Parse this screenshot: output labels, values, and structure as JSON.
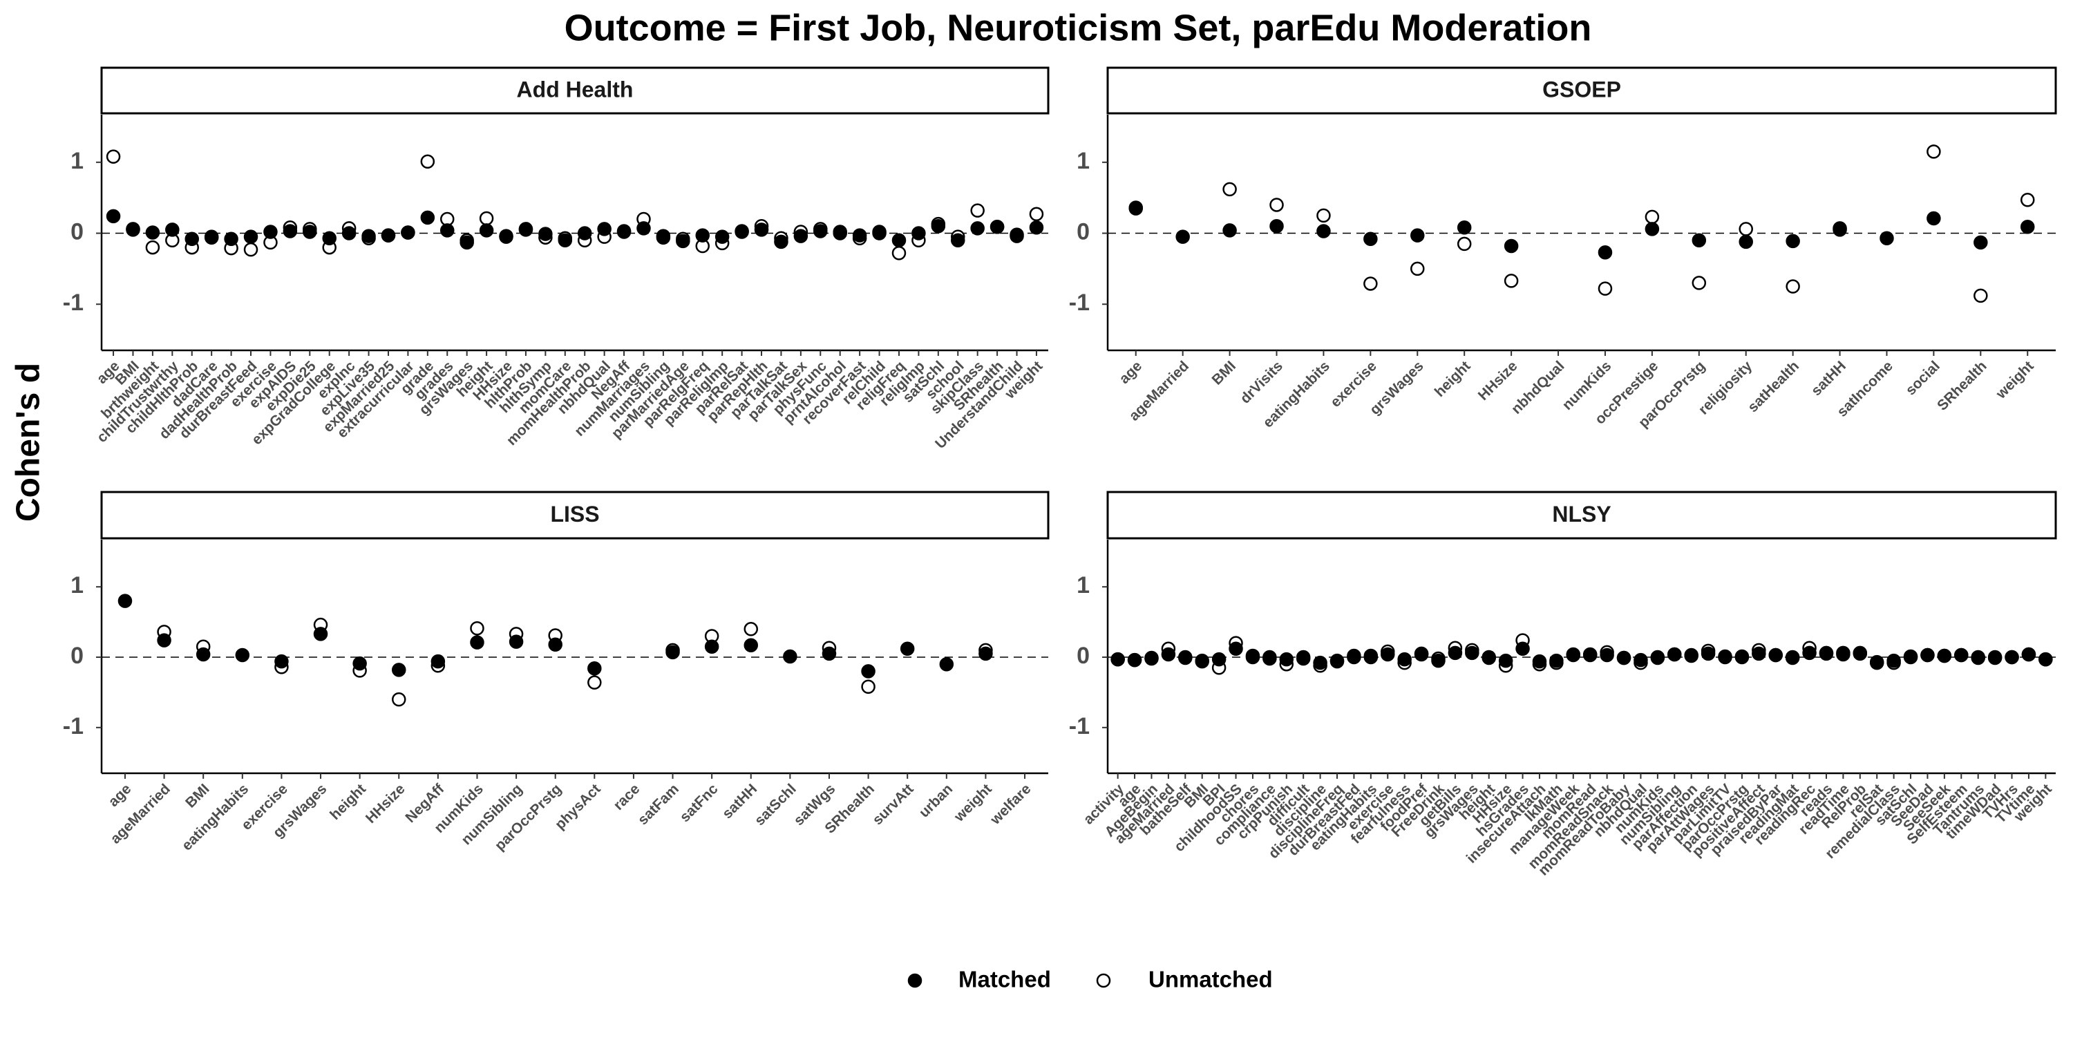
{
  "title": "Outcome = First Job, Neuroticism Set, parEdu Moderation",
  "ylabel": "Cohen's d",
  "legend": "bottom",
  "chart_data": [
    {
      "type": "dot",
      "title": "Add Health",
      "ylim": [
        -1.65,
        1.67
      ],
      "yticks": [
        -1,
        0,
        1
      ],
      "hline": 0,
      "categories": [
        "age",
        "BMI",
        "brthweight",
        "childTrustwrthy",
        "childHlthProb",
        "dadCare",
        "dadHealthProb",
        "durBreastFeed",
        "exercise",
        "expAIDS",
        "expDie25",
        "expGradCollege",
        "expInc",
        "expLive35",
        "expMarried25",
        "extracurricular",
        "grade",
        "grades",
        "grsWages",
        "height",
        "HHsize",
        "hlthProb",
        "hlthSymp",
        "momCare",
        "momHealthProb",
        "nbhdQual",
        "NegAff",
        "numMarriages",
        "numSibling",
        "parMarriedAge",
        "parRelgFreq",
        "parReligImp",
        "parRelSat",
        "parRepHlth",
        "parTalkSat",
        "parTalkSex",
        "physFunc",
        "prntAlcohol",
        "recoverFast",
        "relChild",
        "religFreq",
        "religImp",
        "satSchl",
        "school",
        "skipClass",
        "SRhealth",
        "UnderstandChild",
        "weight"
      ],
      "series": [
        {
          "name": "Matched",
          "color": "#000000",
          "filled": true,
          "values": [
            0.24,
            0.06,
            0.01,
            0.05,
            -0.08,
            -0.06,
            -0.08,
            -0.05,
            0.02,
            0.03,
            0.02,
            -0.07,
            0.0,
            -0.04,
            -0.03,
            0.01,
            0.22,
            0.04,
            -0.13,
            0.04,
            -0.05,
            0.06,
            -0.01,
            -0.1,
            0.0,
            0.06,
            0.02,
            0.07,
            -0.06,
            -0.11,
            -0.03,
            -0.05,
            0.03,
            0.05,
            -0.12,
            -0.04,
            0.03,
            0.02,
            -0.03,
            0.0,
            -0.1,
            0.0,
            0.1,
            -0.1,
            0.07,
            0.09,
            -0.04,
            0.08
          ]
        },
        {
          "name": "Unmatched",
          "color": "#000000",
          "filled": false,
          "values": [
            1.08,
            0.05,
            -0.2,
            -0.1,
            -0.2,
            -0.05,
            -0.21,
            -0.23,
            -0.13,
            0.08,
            0.06,
            -0.2,
            0.07,
            -0.07,
            -0.03,
            0.01,
            1.01,
            0.2,
            -0.1,
            0.21,
            -0.04,
            0.05,
            -0.06,
            -0.07,
            -0.1,
            -0.05,
            0.03,
            0.2,
            -0.04,
            -0.08,
            -0.18,
            -0.14,
            0.02,
            0.1,
            -0.07,
            0.02,
            0.06,
            0.0,
            -0.07,
            0.02,
            -0.28,
            -0.1,
            0.13,
            -0.05,
            0.32,
            0.09,
            -0.02,
            0.27
          ]
        }
      ]
    },
    {
      "type": "dot",
      "title": "GSOEP",
      "ylim": [
        -1.65,
        1.67
      ],
      "yticks": [
        -1,
        0,
        1
      ],
      "hline": 0,
      "categories": [
        "age",
        "ageMarried",
        "BMI",
        "drVisits",
        "eatingHabits",
        "exercise",
        "grsWages",
        "height",
        "HHsize",
        "nbhdQual",
        "numKids",
        "occPrestige",
        "parOccPrstg",
        "religiosity",
        "satHealth",
        "satHH",
        "satIncome",
        "social",
        "SRhealth",
        "weight"
      ],
      "series": [
        {
          "name": "Matched",
          "color": "#000000",
          "filled": true,
          "values": [
            0.36,
            -0.05,
            0.04,
            0.1,
            0.03,
            -0.08,
            -0.03,
            0.08,
            -0.18,
            null,
            -0.27,
            0.06,
            -0.1,
            -0.12,
            -0.11,
            0.05,
            -0.07,
            0.21,
            -0.13,
            0.09
          ]
        },
        {
          "name": "Unmatched",
          "color": "#000000",
          "filled": false,
          "values": [
            0.35,
            null,
            0.62,
            0.4,
            0.25,
            -0.71,
            -0.5,
            -0.15,
            -0.67,
            null,
            -0.78,
            0.23,
            -0.7,
            0.06,
            -0.75,
            0.07,
            null,
            1.15,
            -0.88,
            0.47
          ]
        }
      ]
    },
    {
      "type": "dot",
      "title": "LISS",
      "ylim": [
        -1.65,
        1.67
      ],
      "yticks": [
        -1,
        0,
        1
      ],
      "hline": 0,
      "categories": [
        "age",
        "ageMarried",
        "BMI",
        "eatingHabits",
        "exercise",
        "grsWages",
        "height",
        "HHsize",
        "NegAff",
        "numKids",
        "numSibling",
        "parOccPrstg",
        "physAct",
        "race",
        "satFam",
        "satFnc",
        "satHH",
        "satSchl",
        "satWgs",
        "SRhealth",
        "survAtt",
        "urban",
        "weight",
        "welfare"
      ],
      "series": [
        {
          "name": "Matched",
          "color": "#000000",
          "filled": true,
          "values": [
            0.8,
            0.24,
            0.04,
            0.03,
            -0.06,
            0.33,
            -0.09,
            -0.18,
            -0.06,
            0.21,
            0.22,
            0.18,
            -0.16,
            null,
            0.07,
            0.15,
            0.17,
            0.01,
            0.05,
            -0.2,
            0.12,
            -0.1,
            0.05,
            null
          ]
        },
        {
          "name": "Unmatched",
          "color": "#000000",
          "filled": false,
          "values": [
            null,
            0.36,
            0.15,
            null,
            -0.14,
            0.46,
            -0.19,
            -0.6,
            -0.12,
            0.41,
            0.33,
            0.31,
            -0.36,
            null,
            0.1,
            0.3,
            0.4,
            null,
            0.13,
            -0.42,
            null,
            null,
            0.1,
            null
          ]
        }
      ]
    },
    {
      "type": "dot",
      "title": "NLSY",
      "ylim": [
        -1.65,
        1.67
      ],
      "yticks": [
        -1,
        0,
        1
      ],
      "hline": 0,
      "categories": [
        "activity",
        "age",
        "AgeBegin",
        "ageMarried",
        "batheSelf",
        "BMI",
        "BPI",
        "childhoodSS",
        "chores",
        "compliance",
        "crpPunish",
        "difficult",
        "discipline",
        "disciplineFreq",
        "durBreastFed",
        "eatingHabits",
        "exercise",
        "fearfulness",
        "foodPref",
        "FreeDrink",
        "getBills",
        "grsWages",
        "height",
        "HHsize",
        "hsGrades",
        "insecureAttach",
        "lkMath",
        "manageWeek",
        "momRead",
        "momReadSnack",
        "momReadToBaby",
        "nbhdQual",
        "numKids",
        "numSibling",
        "parAffection",
        "parAttWages",
        "parLimitTV",
        "parOccPrstg",
        "positiveAffect",
        "praisedByPar",
        "readingMat",
        "readingRec",
        "reads",
        "readTime",
        "RelProb",
        "relSat",
        "remedialClass",
        "satSchl",
        "SeeDad",
        "SeeSeek",
        "SelfEsteem",
        "Tantrums",
        "timeWDad",
        "TVHrs",
        "TVtime",
        "weight"
      ],
      "series": [
        {
          "name": "Matched",
          "color": "#000000",
          "filled": true,
          "values": [
            -0.03,
            -0.04,
            -0.02,
            0.04,
            -0.01,
            -0.06,
            -0.03,
            0.12,
            0.0,
            0.0,
            -0.03,
            0.0,
            -0.08,
            -0.05,
            0.0,
            0.0,
            0.04,
            -0.03,
            0.05,
            -0.05,
            0.06,
            0.06,
            -0.01,
            -0.05,
            0.12,
            -0.06,
            -0.05,
            0.03,
            0.03,
            0.03,
            -0.01,
            -0.04,
            -0.01,
            0.04,
            0.02,
            0.05,
            0.01,
            0.0,
            0.05,
            0.03,
            -0.01,
            0.06,
            0.06,
            0.04,
            0.06,
            -0.07,
            -0.05,
            0.0,
            0.03,
            0.02,
            0.03,
            -0.01,
            -0.01,
            0.0,
            0.04,
            -0.03
          ]
        },
        {
          "name": "Unmatched",
          "color": "#000000",
          "filled": false,
          "values": [
            -0.03,
            -0.04,
            -0.01,
            0.12,
            0.0,
            -0.05,
            -0.15,
            0.2,
            0.02,
            -0.02,
            -0.1,
            -0.02,
            -0.12,
            -0.06,
            0.02,
            0.02,
            0.08,
            -0.08,
            0.04,
            -0.02,
            0.13,
            0.1,
            0.0,
            -0.12,
            0.24,
            -0.1,
            -0.08,
            0.04,
            0.04,
            0.07,
            -0.01,
            -0.08,
            0.0,
            0.04,
            0.03,
            0.09,
            0.0,
            0.01,
            0.1,
            0.03,
            0.0,
            0.13,
            0.05,
            0.06,
            0.05,
            -0.08,
            -0.08,
            0.01,
            0.03,
            0.02,
            0.03,
            0.0,
            0.0,
            0.0,
            0.04,
            -0.03
          ]
        }
      ]
    }
  ]
}
